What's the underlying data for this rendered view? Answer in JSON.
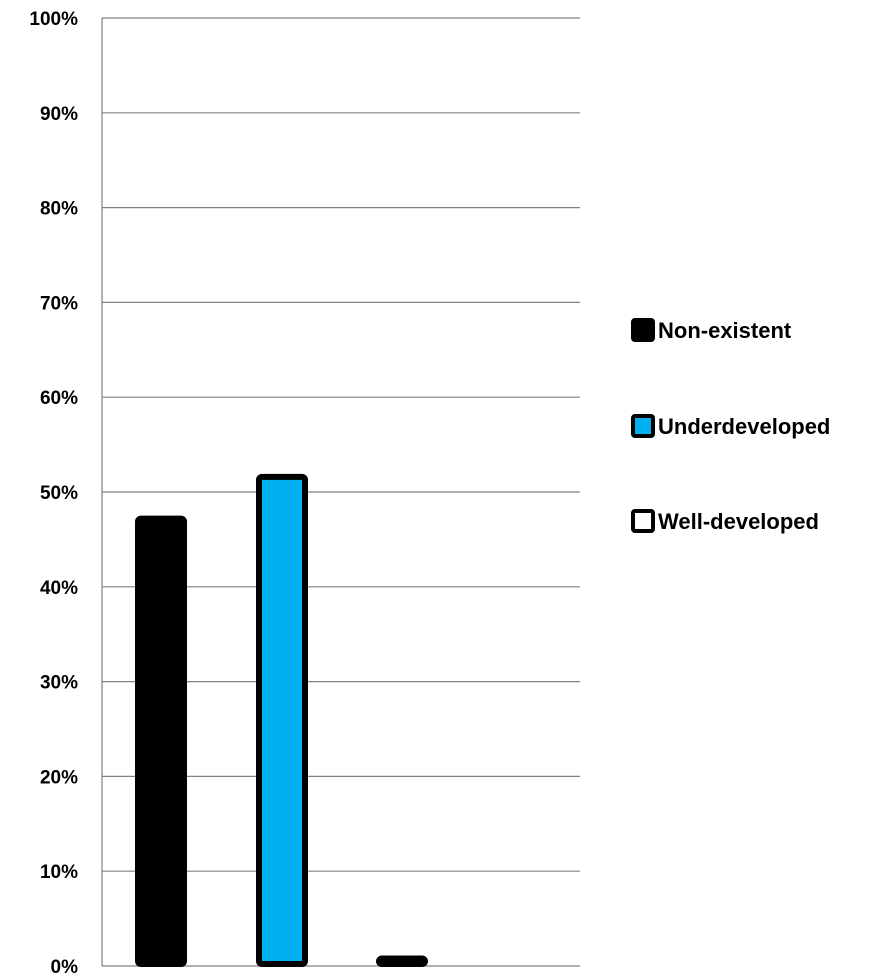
{
  "chart_data": {
    "type": "bar",
    "categories": [
      "Non-existent",
      "Underdeveloped",
      "Well-developed"
    ],
    "values": [
      47.3,
      51.7,
      0.9
    ],
    "ylim": [
      0,
      100
    ],
    "yticks": [
      "0%",
      "10%",
      "20%",
      "30%",
      "40%",
      "50%",
      "60%",
      "70%",
      "80%",
      "90%",
      "100%"
    ],
    "grid": true,
    "legend_position": "right",
    "colors": {
      "fills": [
        "#000000",
        "#00b0f0",
        "#ffffff"
      ],
      "outline": "#000000",
      "grid": "#808080",
      "axis": "#808080"
    }
  }
}
